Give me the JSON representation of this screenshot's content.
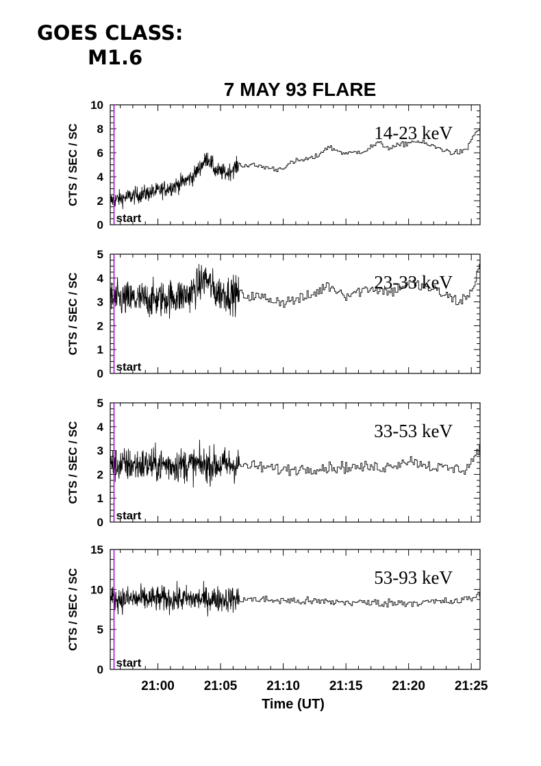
{
  "header": {
    "goes_line1": "GOES CLASS:",
    "goes_line2": "M1.6"
  },
  "chart_data": {
    "type": "line",
    "title": "7 MAY 93 FLARE",
    "xlabel": "Time (UT)",
    "x_ticks": [
      "21:00",
      "21:05",
      "21:10",
      "21:15",
      "21:20",
      "21:25"
    ],
    "x_range_minutes": [
      -3.8,
      25.7
    ],
    "start_marker": {
      "label": "start",
      "time_minutes": -3.5,
      "color": "#9900cc"
    },
    "panels": [
      {
        "name": "14-23 keV",
        "ylabel": "CTS / SEC / SC",
        "ylim": [
          0,
          10
        ],
        "yticks": [
          "0",
          "2",
          "4",
          "6",
          "8",
          "10"
        ],
        "ytick_values": [
          0,
          2,
          4,
          6,
          8,
          10
        ],
        "noise": 0.35,
        "profile": [
          [
            -3.8,
            2.0
          ],
          [
            -2.0,
            2.4
          ],
          [
            0.0,
            2.8
          ],
          [
            1.5,
            3.3
          ],
          [
            2.8,
            4.0
          ],
          [
            3.5,
            5.0
          ],
          [
            4.0,
            5.6
          ],
          [
            4.6,
            4.5
          ],
          [
            5.5,
            4.3
          ],
          [
            6.5,
            5.0
          ],
          [
            8.0,
            4.9
          ],
          [
            9.5,
            4.6
          ],
          [
            11.0,
            5.3
          ],
          [
            12.5,
            5.6
          ],
          [
            13.5,
            6.5
          ],
          [
            15.0,
            5.9
          ],
          [
            16.5,
            6.2
          ],
          [
            17.5,
            6.8
          ],
          [
            18.5,
            6.4
          ],
          [
            20.5,
            7.0
          ],
          [
            22.0,
            6.5
          ],
          [
            23.5,
            6.0
          ],
          [
            24.5,
            6.1
          ],
          [
            25.2,
            7.6
          ],
          [
            25.7,
            8.0
          ]
        ]
      },
      {
        "name": "23-33 keV",
        "ylabel": "CTS / SEC / SC",
        "ylim": [
          0,
          5
        ],
        "yticks": [
          "0",
          "1",
          "2",
          "3",
          "4",
          "5"
        ],
        "ytick_values": [
          0,
          1,
          2,
          3,
          4,
          5
        ],
        "noise": 0.38,
        "profile": [
          [
            -3.8,
            3.1
          ],
          [
            0.0,
            3.1
          ],
          [
            2.5,
            3.3
          ],
          [
            3.8,
            4.0
          ],
          [
            4.6,
            3.4
          ],
          [
            6.5,
            3.3
          ],
          [
            8.0,
            3.2
          ],
          [
            10.0,
            3.0
          ],
          [
            12.0,
            3.2
          ],
          [
            13.5,
            3.7
          ],
          [
            15.0,
            3.3
          ],
          [
            17.0,
            3.6
          ],
          [
            18.5,
            3.4
          ],
          [
            20.0,
            3.8
          ],
          [
            22.0,
            3.5
          ],
          [
            24.0,
            3.0
          ],
          [
            25.0,
            3.4
          ],
          [
            25.7,
            4.8
          ]
        ]
      },
      {
        "name": "33-53 keV",
        "ylabel": "CTS / SEC / SC",
        "ylim": [
          0,
          5
        ],
        "yticks": [
          "0",
          "1",
          "2",
          "3",
          "4",
          "5"
        ],
        "ytick_values": [
          0,
          1,
          2,
          3,
          4,
          5
        ],
        "noise": 0.36,
        "profile": [
          [
            -3.8,
            2.4
          ],
          [
            6.5,
            2.4
          ],
          [
            10.0,
            2.2
          ],
          [
            14.0,
            2.3
          ],
          [
            18.0,
            2.3
          ],
          [
            20.0,
            2.6
          ],
          [
            22.0,
            2.3
          ],
          [
            24.5,
            2.2
          ],
          [
            25.7,
            3.1
          ]
        ]
      },
      {
        "name": "53-93 keV",
        "ylabel": "CTS / SEC / SC",
        "ylim": [
          0,
          15
        ],
        "yticks": [
          "0",
          "5",
          "10",
          "15"
        ],
        "ytick_values": [
          0,
          5,
          10,
          15
        ],
        "noise": 0.8,
        "profile": [
          [
            -3.8,
            8.8
          ],
          [
            6.5,
            8.8
          ],
          [
            12.0,
            8.5
          ],
          [
            18.0,
            8.3
          ],
          [
            24.0,
            8.5
          ],
          [
            25.7,
            9.3
          ]
        ]
      }
    ]
  }
}
